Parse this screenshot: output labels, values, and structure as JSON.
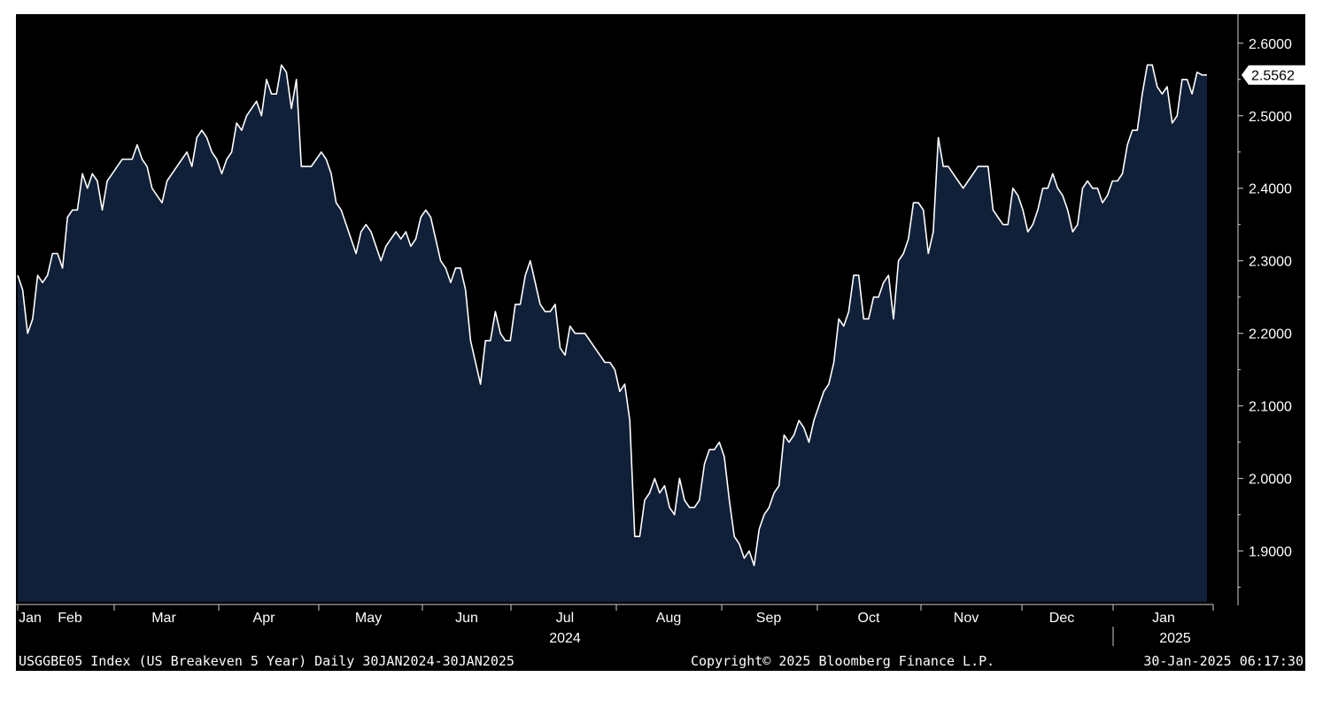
{
  "chart_data": {
    "type": "area",
    "ticker_label": "2.5562",
    "y_ticks": [
      "2.6000",
      "2.5000",
      "2.4000",
      "2.3000",
      "2.2000",
      "2.1000",
      "2.0000",
      "1.9000"
    ],
    "y_tick_values": [
      2.6,
      2.5,
      2.4,
      2.3,
      2.2,
      2.1,
      2.0,
      1.9
    ],
    "ylim": [
      1.83,
      2.64
    ],
    "x_month_labels": [
      "Jan",
      "Feb",
      "Mar",
      "Apr",
      "May",
      "Jun",
      "Jul",
      "Aug",
      "Sep",
      "Oct",
      "Nov",
      "Dec",
      "Jan"
    ],
    "x_year_labels": [
      "2024",
      "2025"
    ],
    "colors": {
      "fill": "#112039",
      "line": "#ffffff",
      "background": "#000000"
    },
    "series": [
      {
        "values": [
          2.28,
          2.26,
          2.2,
          2.22,
          2.28,
          2.27,
          2.28,
          2.31,
          2.31,
          2.29,
          2.36,
          2.37,
          2.37,
          2.42,
          2.4,
          2.42,
          2.41,
          2.37,
          2.41,
          2.42,
          2.43,
          2.44,
          2.44,
          2.44,
          2.46,
          2.44,
          2.43,
          2.4,
          2.39,
          2.38,
          2.41,
          2.42,
          2.43,
          2.44,
          2.45,
          2.43,
          2.47,
          2.48,
          2.47,
          2.45,
          2.44,
          2.42,
          2.44,
          2.45,
          2.49,
          2.48,
          2.5,
          2.51,
          2.52,
          2.5,
          2.55,
          2.53,
          2.53,
          2.57,
          2.56,
          2.51,
          2.55,
          2.43,
          2.43,
          2.43,
          2.44,
          2.45,
          2.44,
          2.42,
          2.38,
          2.37,
          2.35,
          2.33,
          2.31,
          2.34,
          2.35,
          2.34,
          2.32,
          2.3,
          2.32,
          2.33,
          2.34,
          2.33,
          2.34,
          2.32,
          2.33,
          2.36,
          2.37,
          2.36,
          2.33,
          2.3,
          2.29,
          2.27,
          2.29,
          2.29,
          2.26,
          2.19,
          2.16,
          2.13,
          2.19,
          2.19,
          2.23,
          2.2,
          2.19,
          2.19,
          2.24,
          2.24,
          2.28,
          2.3,
          2.27,
          2.24,
          2.23,
          2.23,
          2.24,
          2.18,
          2.17,
          2.21,
          2.2,
          2.2,
          2.2,
          2.19,
          2.18,
          2.17,
          2.16,
          2.16,
          2.15,
          2.12,
          2.13,
          2.08,
          1.92,
          1.92,
          1.97,
          1.98,
          2.0,
          1.98,
          1.99,
          1.96,
          1.95,
          2.0,
          1.97,
          1.96,
          1.96,
          1.97,
          2.02,
          2.04,
          2.04,
          2.05,
          2.03,
          1.97,
          1.92,
          1.91,
          1.89,
          1.9,
          1.88,
          1.93,
          1.95,
          1.96,
          1.98,
          1.99,
          2.06,
          2.05,
          2.06,
          2.08,
          2.07,
          2.05,
          2.08,
          2.1,
          2.12,
          2.13,
          2.16,
          2.22,
          2.21,
          2.23,
          2.28,
          2.28,
          2.22,
          2.22,
          2.25,
          2.25,
          2.27,
          2.28,
          2.22,
          2.3,
          2.31,
          2.33,
          2.38,
          2.38,
          2.37,
          2.31,
          2.34,
          2.47,
          2.43,
          2.43,
          2.42,
          2.41,
          2.4,
          2.41,
          2.42,
          2.43,
          2.43,
          2.43,
          2.37,
          2.36,
          2.35,
          2.35,
          2.4,
          2.39,
          2.37,
          2.34,
          2.35,
          2.37,
          2.4,
          2.4,
          2.42,
          2.4,
          2.39,
          2.37,
          2.34,
          2.35,
          2.4,
          2.41,
          2.4,
          2.4,
          2.38,
          2.39,
          2.41,
          2.41,
          2.42,
          2.46,
          2.48,
          2.48,
          2.53,
          2.57,
          2.57,
          2.54,
          2.53,
          2.54,
          2.49,
          2.5,
          2.55,
          2.55,
          2.53,
          2.56,
          2.5562,
          2.5562
        ]
      }
    ]
  },
  "footer": {
    "left": "USGGBE05 Index (US Breakeven 5 Year)  Daily 30JAN2024-30JAN2025",
    "center": "Copyright© 2025 Bloomberg Finance L.P.",
    "right": "30-Jan-2025 06:17:30"
  }
}
